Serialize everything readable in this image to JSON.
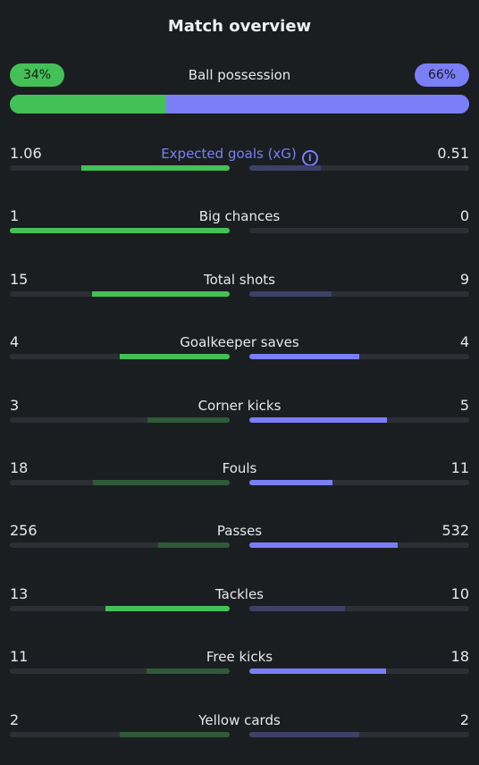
{
  "title": "Match overview",
  "possession": {
    "label": "Ball possession",
    "home": "34%",
    "away": "66%",
    "home_fraction": 0.34
  },
  "colors": {
    "home": "#44c156",
    "away": "#7a7ff7",
    "home_dim": "#2f5a37",
    "away_dim": "#3d4168",
    "track": "#2c3034"
  },
  "info_icon": "info-icon",
  "stats": [
    {
      "label": "Expected goals (xG)",
      "home": "1.06",
      "away": "0.51",
      "home_fraction": 0.675,
      "away_fraction": 0.325,
      "winner": "home",
      "has_info": true
    },
    {
      "label": "Big chances",
      "home": "1",
      "away": "0",
      "home_fraction": 1.0,
      "away_fraction": 0.0,
      "winner": "home"
    },
    {
      "label": "Total shots",
      "home": "15",
      "away": "9",
      "home_fraction": 0.625,
      "away_fraction": 0.375,
      "winner": "home"
    },
    {
      "label": "Goalkeeper saves",
      "home": "4",
      "away": "4",
      "home_fraction": 0.5,
      "away_fraction": 0.5,
      "winner": "both"
    },
    {
      "label": "Corner kicks",
      "home": "3",
      "away": "5",
      "home_fraction": 0.375,
      "away_fraction": 0.625,
      "winner": "away"
    },
    {
      "label": "Fouls",
      "home": "18",
      "away": "11",
      "home_fraction": 0.62,
      "away_fraction": 0.38,
      "winner": "away"
    },
    {
      "label": "Passes",
      "home": "256",
      "away": "532",
      "home_fraction": 0.325,
      "away_fraction": 0.675,
      "winner": "away"
    },
    {
      "label": "Tackles",
      "home": "13",
      "away": "10",
      "home_fraction": 0.565,
      "away_fraction": 0.435,
      "winner": "home"
    },
    {
      "label": "Free kicks",
      "home": "11",
      "away": "18",
      "home_fraction": 0.38,
      "away_fraction": 0.62,
      "winner": "away"
    },
    {
      "label": "Yellow cards",
      "home": "2",
      "away": "2",
      "home_fraction": 0.5,
      "away_fraction": 0.5,
      "winner": "none"
    }
  ]
}
